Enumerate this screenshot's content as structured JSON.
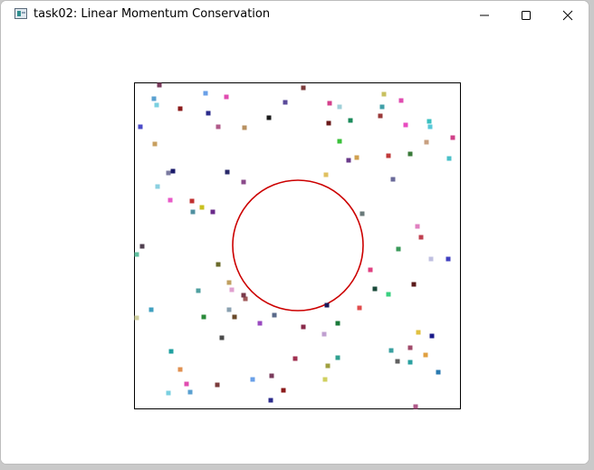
{
  "window": {
    "title": "task02: Linear Momentum Conservation",
    "controls": {
      "minimize_icon": "minimize-icon",
      "maximize_icon": "maximize-icon",
      "close_icon": "close-icon"
    }
  },
  "simulation": {
    "box_border_color": "#000000",
    "obstacle_color": "#cc0000",
    "particle_colors": [
      "#7a3b5c",
      "#6aa0e8",
      "#e04cb0",
      "#7b3b3b",
      "#5aa0d0",
      "#7bd0e0",
      "#8b1a1a",
      "#2c2c8c",
      "#b05a8a",
      "#1a1a1a",
      "#b89060",
      "#5a4a9a",
      "#d4408c",
      "#a0d0d8",
      "#1a8a5a",
      "#9a3a3a",
      "#c8c060",
      "#e04cb0",
      "#40a0a8",
      "#e84cc0",
      "#6a1a1a",
      "#4a4ac8",
      "#c8a060",
      "#1a1a6a",
      "#3ac03a",
      "#6a3a8a",
      "#c03a3a",
      "#d0a050",
      "#3a7a3a",
      "#3ac0c0",
      "#58c8d8",
      "#d04088",
      "#c8a080",
      "#4ac0c8",
      "#6a6a9a",
      "#e0c060",
      "#2a2a6a",
      "#8a4a8a",
      "#7a7aa0",
      "#e85ac8",
      "#8bd0e0",
      "#c03030",
      "#c8c020",
      "#5090a0",
      "#6a2a8a",
      "#6a7a7a",
      "#e080c0",
      "#c04050",
      "#3a9a5a",
      "#60c0a0",
      "#504050",
      "#6a6a2a",
      "#e04080",
      "#c0c0e0",
      "#4040c0",
      "#1a4a3a",
      "#5a1a1a",
      "#3ad080",
      "#50a0a0",
      "#c0a060",
      "#e0a0d0",
      "#a05a5a",
      "#7a3a4a",
      "#8aa0b0",
      "#2a8a3a",
      "#6a4a2a",
      "#9a4ac0",
      "#5a6a8a",
      "#d0d0a0",
      "#40a0c0",
      "#1a1a5a",
      "#e04c4c",
      "#1a7a3a",
      "#8a2a4a",
      "#c0a0d0",
      "#4a4a4a",
      "#20a0a0",
      "#e0c040",
      "#1a1a8a",
      "#3aa0a0",
      "#a04a6a",
      "#e0a040",
      "#606060",
      "#2aa0a0",
      "#30a090",
      "#a03050",
      "#a0a040",
      "#e09050",
      "#2a7ab0",
      "#d0d060"
    ]
  }
}
